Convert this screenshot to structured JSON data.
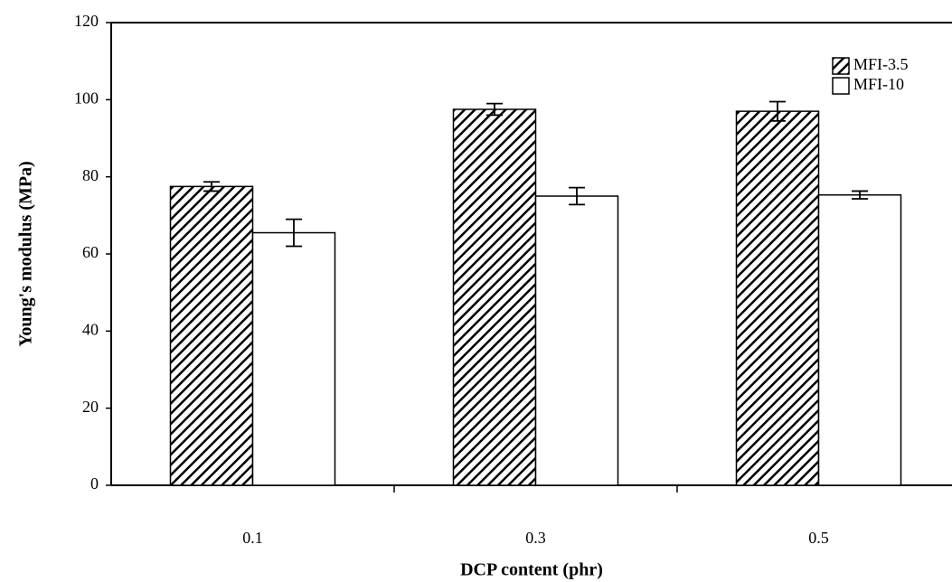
{
  "chart_data": {
    "type": "bar",
    "x_label": "DCP content (phr)",
    "y_label": "Young's modulus (MPa)",
    "categories": [
      "0.1",
      "0.3",
      "0.5"
    ],
    "series": [
      {
        "name": "MFI-3.5",
        "color": "#000000",
        "hatch": true,
        "values": [
          77.5,
          97.5,
          97
        ],
        "errors": [
          1.2,
          1.5,
          2.5
        ]
      },
      {
        "name": "MFI-10",
        "color": "#ffffff",
        "hatch": false,
        "values": [
          65.5,
          75,
          75.3
        ],
        "errors": [
          3.5,
          2.2,
          1
        ]
      }
    ],
    "ylim": [
      0,
      120
    ],
    "yticks": [
      0,
      20,
      40,
      60,
      80,
      100,
      120
    ],
    "legend": "top-right"
  }
}
